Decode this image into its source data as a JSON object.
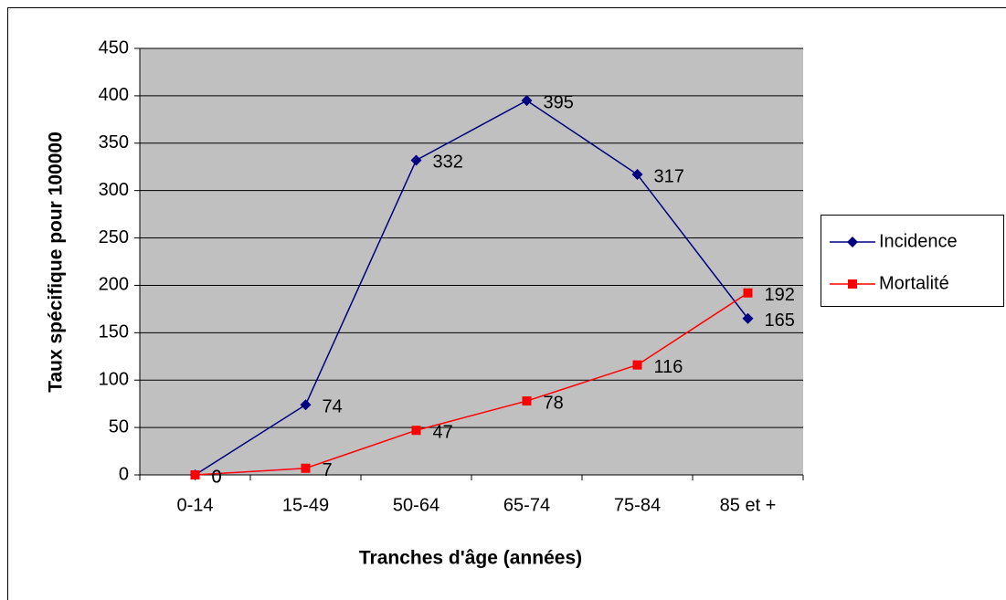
{
  "chart_data": {
    "type": "line",
    "categories": [
      "0-14",
      "15-49",
      "50-64",
      "65-74",
      "75-84",
      "85 et +"
    ],
    "series": [
      {
        "name": "Incidence",
        "color": "#000080",
        "marker": "diamond",
        "values": [
          0,
          74,
          332,
          395,
          317,
          165
        ]
      },
      {
        "name": "Mortalité",
        "color": "#ff0000",
        "marker": "square",
        "values": [
          0,
          7,
          47,
          78,
          116,
          192
        ]
      }
    ],
    "ylim": [
      0,
      450
    ],
    "yticks": [
      0,
      50,
      100,
      150,
      200,
      250,
      300,
      350,
      400,
      450
    ],
    "y_label": "Taux spécifique pour 100000",
    "x_label": "Tranches d'âge (années)",
    "grid": true,
    "plot_background": "#c0c0c0",
    "legend": "right"
  }
}
